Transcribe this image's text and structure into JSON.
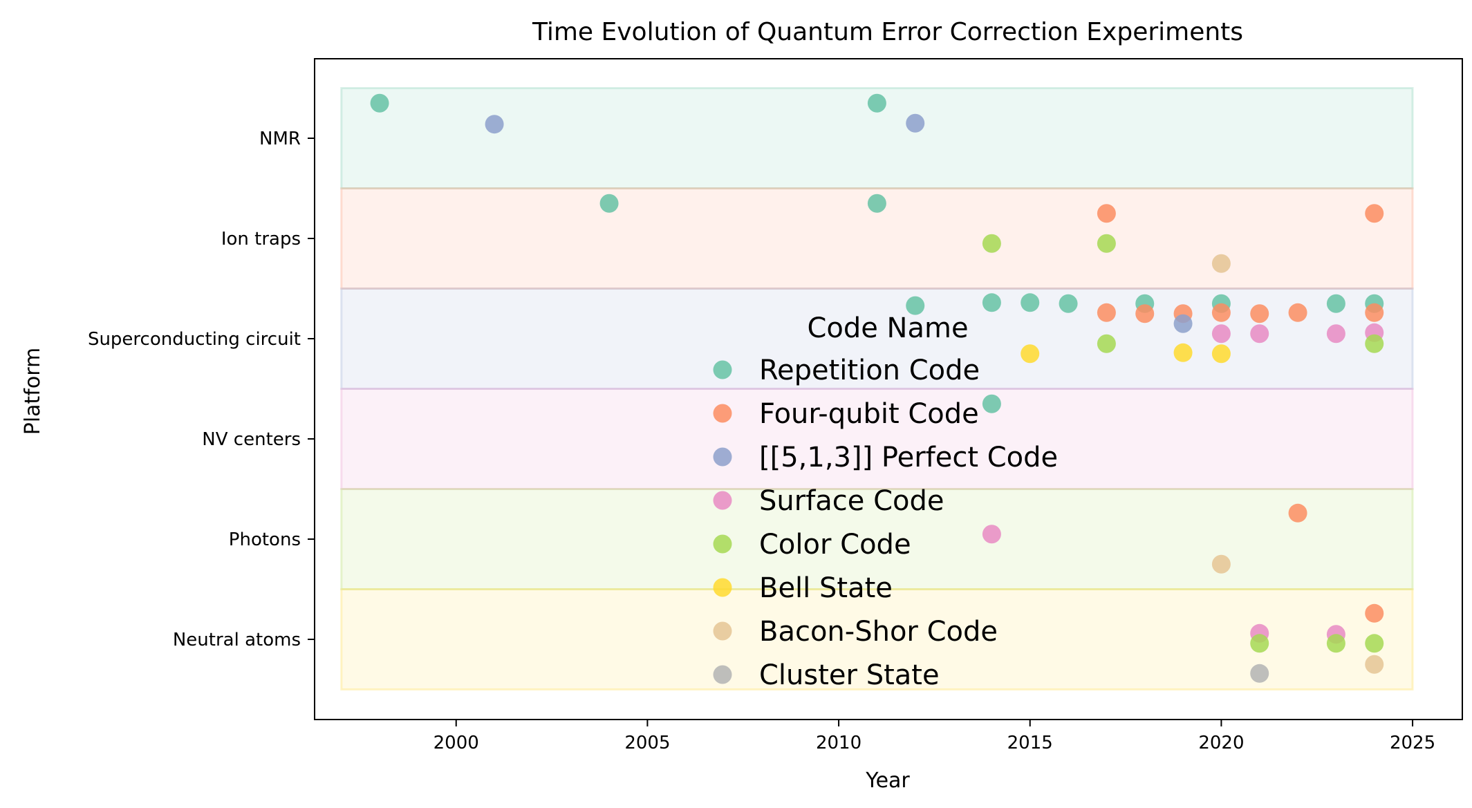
{
  "chart_data": {
    "type": "scatter",
    "title": "Time Evolution of Quantum Error Correction Experiments",
    "xlabel": "Year",
    "ylabel": "Platform",
    "xlim": [
      1996.3,
      2026.3
    ],
    "x_ticks": [
      2000,
      2005,
      2010,
      2015,
      2020,
      2025
    ],
    "x_tick_labels": [
      "2000",
      "2005",
      "2010",
      "2015",
      "2020",
      "2025"
    ],
    "categories": [
      "NMR",
      "Ion traps",
      "Superconducting circuit",
      "NV centers",
      "Photons",
      "Neutral atoms"
    ],
    "band_colors": [
      "#66c2a5",
      "#fc8d62",
      "#8da0cb",
      "#e78ac3",
      "#a6d854",
      "#ffd92f"
    ],
    "grid": false,
    "legend": {
      "title": "Code Name",
      "placement": "center"
    },
    "series": [
      {
        "name": "Repetition Code",
        "color": "#66c2a5",
        "points": [
          {
            "x": 1998,
            "y": "NMR",
            "offset": 0.35
          },
          {
            "x": 2011,
            "y": "NMR",
            "offset": 0.35
          },
          {
            "x": 2004,
            "y": "Ion traps",
            "offset": 0.35
          },
          {
            "x": 2011,
            "y": "Ion traps",
            "offset": 0.35
          },
          {
            "x": 2012,
            "y": "Superconducting circuit",
            "offset": 0.33
          },
          {
            "x": 2014,
            "y": "Superconducting circuit",
            "offset": 0.36
          },
          {
            "x": 2015,
            "y": "Superconducting circuit",
            "offset": 0.36
          },
          {
            "x": 2016,
            "y": "Superconducting circuit",
            "offset": 0.35
          },
          {
            "x": 2018,
            "y": "Superconducting circuit",
            "offset": 0.35
          },
          {
            "x": 2020,
            "y": "Superconducting circuit",
            "offset": 0.35
          },
          {
            "x": 2023,
            "y": "Superconducting circuit",
            "offset": 0.35
          },
          {
            "x": 2024,
            "y": "Superconducting circuit",
            "offset": 0.35
          },
          {
            "x": 2014,
            "y": "NV centers",
            "offset": 0.35
          }
        ]
      },
      {
        "name": "Four-qubit Code",
        "color": "#fc8d62",
        "points": [
          {
            "x": 2017,
            "y": "Ion traps",
            "offset": 0.25
          },
          {
            "x": 2024,
            "y": "Ion traps",
            "offset": 0.25
          },
          {
            "x": 2017,
            "y": "Superconducting circuit",
            "offset": 0.26
          },
          {
            "x": 2018,
            "y": "Superconducting circuit",
            "offset": 0.25
          },
          {
            "x": 2019,
            "y": "Superconducting circuit",
            "offset": 0.25
          },
          {
            "x": 2020,
            "y": "Superconducting circuit",
            "offset": 0.26
          },
          {
            "x": 2021,
            "y": "Superconducting circuit",
            "offset": 0.25
          },
          {
            "x": 2022,
            "y": "Superconducting circuit",
            "offset": 0.26
          },
          {
            "x": 2024,
            "y": "Superconducting circuit",
            "offset": 0.26
          },
          {
            "x": 2022,
            "y": "Photons",
            "offset": 0.26
          },
          {
            "x": 2024,
            "y": "Neutral atoms",
            "offset": 0.26
          }
        ]
      },
      {
        "name": "[[5,1,3]] Perfect Code",
        "color": "#8da0cb",
        "points": [
          {
            "x": 2001,
            "y": "NMR",
            "offset": 0.14
          },
          {
            "x": 2012,
            "y": "NMR",
            "offset": 0.15
          },
          {
            "x": 2019,
            "y": "Superconducting circuit",
            "offset": 0.15
          }
        ]
      },
      {
        "name": "Surface Code",
        "color": "#e78ac3",
        "points": [
          {
            "x": 2020,
            "y": "Superconducting circuit",
            "offset": 0.05
          },
          {
            "x": 2021,
            "y": "Superconducting circuit",
            "offset": 0.05
          },
          {
            "x": 2023,
            "y": "Superconducting circuit",
            "offset": 0.05
          },
          {
            "x": 2024,
            "y": "Superconducting circuit",
            "offset": 0.06
          },
          {
            "x": 2014,
            "y": "Photons",
            "offset": 0.05
          },
          {
            "x": 2021,
            "y": "Neutral atoms",
            "offset": 0.06
          },
          {
            "x": 2023,
            "y": "Neutral atoms",
            "offset": 0.05
          }
        ]
      },
      {
        "name": "Color Code",
        "color": "#a6d854",
        "points": [
          {
            "x": 2014,
            "y": "Ion traps",
            "offset": -0.05
          },
          {
            "x": 2017,
            "y": "Ion traps",
            "offset": -0.05
          },
          {
            "x": 2017,
            "y": "Superconducting circuit",
            "offset": -0.05
          },
          {
            "x": 2024,
            "y": "Superconducting circuit",
            "offset": -0.05
          },
          {
            "x": 2021,
            "y": "Neutral atoms",
            "offset": -0.04
          },
          {
            "x": 2023,
            "y": "Neutral atoms",
            "offset": -0.04
          },
          {
            "x": 2024,
            "y": "Neutral atoms",
            "offset": -0.04
          }
        ]
      },
      {
        "name": "Bell State",
        "color": "#ffd92f",
        "points": [
          {
            "x": 2015,
            "y": "Superconducting circuit",
            "offset": -0.15
          },
          {
            "x": 2019,
            "y": "Superconducting circuit",
            "offset": -0.14
          },
          {
            "x": 2020,
            "y": "Superconducting circuit",
            "offset": -0.15
          }
        ]
      },
      {
        "name": "Bacon-Shor Code",
        "color": "#e5c494",
        "points": [
          {
            "x": 2020,
            "y": "Ion traps",
            "offset": -0.25
          },
          {
            "x": 2020,
            "y": "Photons",
            "offset": -0.25
          },
          {
            "x": 2024,
            "y": "Neutral atoms",
            "offset": -0.25
          }
        ]
      },
      {
        "name": "Cluster State",
        "color": "#b3b3b3",
        "points": [
          {
            "x": 2021,
            "y": "Neutral atoms",
            "offset": -0.34
          }
        ]
      }
    ]
  }
}
